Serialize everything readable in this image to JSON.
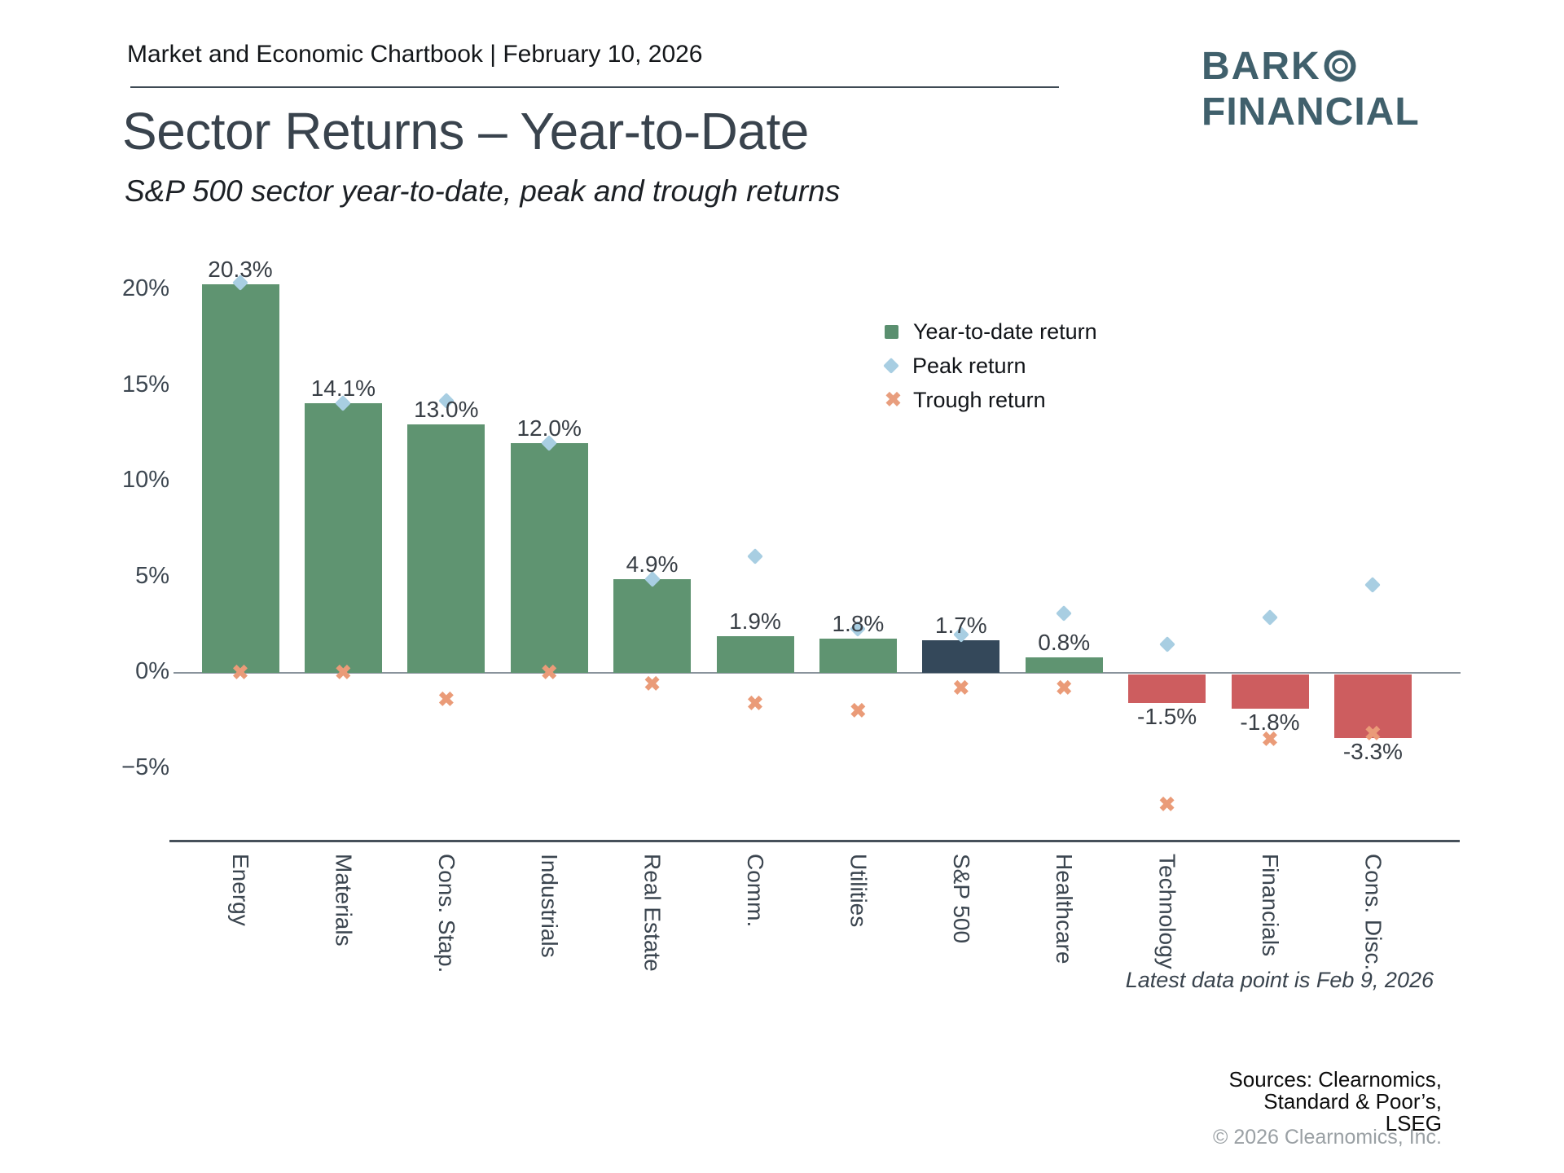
{
  "header": {
    "chartbook_line": "Market and Economic Chartbook | February 10, 2026"
  },
  "logo": {
    "line1": "BARK",
    "circle_icon": "double-ring-circle",
    "line2": "FINANCIAL",
    "color": "#40606c"
  },
  "title": "Sector Returns – Year-to-Date",
  "subtitle": "S&P 500 sector year-to-date, peak and trough returns",
  "footnote": "Latest data point is Feb 9, 2026",
  "sources": {
    "lines": [
      "Sources: Clearnomics,",
      "Standard & Poor’s,",
      "LSEG"
    ],
    "copyright": "© 2026 Clearnomics, Inc."
  },
  "palette": {
    "bar_positive": "#5f9471",
    "bar_negative": "#cd5d5f",
    "bar_benchmark": "#34485a",
    "peak_marker": "#a8cee2",
    "trough_marker": "#ea9b78",
    "axis_line": "#8a939c",
    "base_line": "#46505a",
    "text_dark": "#39434d"
  },
  "chart_data": {
    "type": "bar",
    "title": "Sector Returns – Year-to-Date",
    "subtitle": "S&P 500 sector year-to-date, peak and trough returns",
    "categories": [
      "Energy",
      "Materials",
      "Cons. Stap.",
      "Industrials",
      "Real Estate",
      "Comm.",
      "Utilities",
      "S&P 500",
      "Healthcare",
      "Technology",
      "Financials",
      "Cons. Disc."
    ],
    "benchmark_index": 7,
    "series": [
      {
        "name": "Year-to-date return",
        "type": "bar",
        "values": [
          20.3,
          14.1,
          13.0,
          12.0,
          4.9,
          1.9,
          1.8,
          1.7,
          0.8,
          -1.5,
          -1.8,
          -3.3
        ],
        "labels": [
          "20.3%",
          "14.1%",
          "13.0%",
          "12.0%",
          "4.9%",
          "1.9%",
          "1.8%",
          "1.7%",
          "0.8%",
          "-1.5%",
          "-1.8%",
          "-3.3%"
        ]
      },
      {
        "name": "Peak return",
        "type": "scatter-diamond",
        "values": [
          20.4,
          14.1,
          14.2,
          12.0,
          4.9,
          6.1,
          2.3,
          2.0,
          3.1,
          1.5,
          2.9,
          4.6
        ]
      },
      {
        "name": "Trough return",
        "type": "scatter-x",
        "values": [
          0.0,
          0.0,
          -1.4,
          0.0,
          -0.6,
          -1.6,
          -2.0,
          -0.8,
          -0.8,
          -6.9,
          -3.5,
          -3.2
        ]
      }
    ],
    "ylabel": "",
    "xlabel": "",
    "ylim": [
      -7.5,
      21.5
    ],
    "grid": false,
    "legend_position": "upper-right-inside",
    "yticks": [
      {
        "label": "20%",
        "value": 20
      },
      {
        "label": "15%",
        "value": 15
      },
      {
        "label": "10%",
        "value": 10
      },
      {
        "label": "5%",
        "value": 5
      },
      {
        "label": "0%",
        "value": 0
      },
      {
        "label": "−5%",
        "value": -5
      }
    ]
  }
}
